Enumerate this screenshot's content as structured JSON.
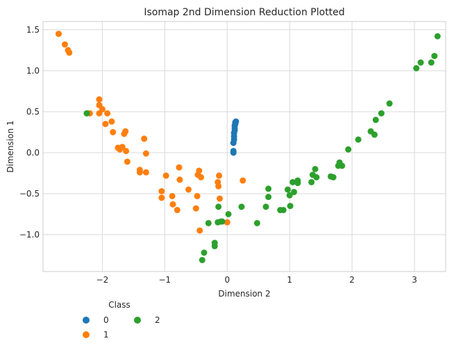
{
  "chart_data": {
    "type": "scatter",
    "title": "Isomap 2nd Dimension Reduction Plotted",
    "xlabel": "Dimension 2",
    "ylabel": "Dimension 1",
    "xlim": [
      -2.95,
      3.5
    ],
    "ylim": [
      -1.45,
      1.6
    ],
    "xticks": [
      -2,
      -1,
      0,
      1,
      2,
      3
    ],
    "yticks": [
      -1.0,
      -0.5,
      0.0,
      0.5,
      1.0,
      1.5
    ],
    "xtick_labels": [
      "−2",
      "−1",
      "0",
      "1",
      "2",
      "3"
    ],
    "ytick_labels": [
      "−1.0",
      "−0.5",
      "0.0",
      "0.5",
      "1.0",
      "1.5"
    ],
    "grid": true,
    "legend": {
      "title": "Class",
      "placement": "below-left",
      "ncol": 2
    },
    "series": [
      {
        "name": "0",
        "color": "#1f77b4",
        "points": [
          [
            0.1,
            0.0
          ],
          [
            0.1,
            0.02
          ],
          [
            0.1,
            0.12
          ],
          [
            0.11,
            0.16
          ],
          [
            0.11,
            0.2
          ],
          [
            0.11,
            0.24
          ],
          [
            0.12,
            0.27
          ],
          [
            0.12,
            0.3
          ],
          [
            0.12,
            0.33
          ],
          [
            0.13,
            0.35
          ],
          [
            0.13,
            0.37
          ],
          [
            0.14,
            0.38
          ]
        ]
      },
      {
        "name": "1",
        "color": "#ff7f0e",
        "points": [
          [
            -2.7,
            1.45
          ],
          [
            -2.6,
            1.32
          ],
          [
            -2.55,
            1.25
          ],
          [
            -2.53,
            1.22
          ],
          [
            -2.2,
            0.48
          ],
          [
            -2.05,
            0.65
          ],
          [
            -2.05,
            0.58
          ],
          [
            -2.05,
            0.48
          ],
          [
            -2.0,
            0.53
          ],
          [
            -1.95,
            0.35
          ],
          [
            -1.92,
            0.48
          ],
          [
            -1.85,
            0.38
          ],
          [
            -1.83,
            0.25
          ],
          [
            -1.75,
            0.06
          ],
          [
            -1.72,
            0.04
          ],
          [
            -1.68,
            0.07
          ],
          [
            -1.65,
            0.23
          ],
          [
            -1.63,
            0.26
          ],
          [
            -1.62,
            0.02
          ],
          [
            -1.6,
            -0.11
          ],
          [
            -1.4,
            -0.21
          ],
          [
            -1.4,
            -0.24
          ],
          [
            -1.33,
            0.17
          ],
          [
            -1.3,
            -0.24
          ],
          [
            -1.3,
            -0.01
          ],
          [
            -1.05,
            -0.47
          ],
          [
            -1.05,
            -0.55
          ],
          [
            -0.98,
            -0.28
          ],
          [
            -0.88,
            -0.53
          ],
          [
            -0.87,
            -0.63
          ],
          [
            -0.8,
            -0.7
          ],
          [
            -0.77,
            -0.18
          ],
          [
            -0.76,
            -0.33
          ],
          [
            -0.62,
            -0.45
          ],
          [
            -0.5,
            -0.68
          ],
          [
            -0.48,
            -0.53
          ],
          [
            -0.47,
            -0.27
          ],
          [
            -0.45,
            -0.22
          ],
          [
            -0.44,
            -0.95
          ],
          [
            -0.42,
            -0.3
          ],
          [
            -0.15,
            -0.36
          ],
          [
            -0.14,
            -0.41
          ],
          [
            -0.13,
            -0.28
          ],
          [
            -0.12,
            -0.56
          ],
          [
            0.0,
            -0.85
          ],
          [
            0.25,
            -0.34
          ]
        ]
      },
      {
        "name": "2",
        "color": "#2ca02c",
        "points": [
          [
            -2.25,
            0.48
          ],
          [
            -0.4,
            -1.31
          ],
          [
            -0.37,
            -1.22
          ],
          [
            -0.3,
            -0.86
          ],
          [
            -0.2,
            -1.1
          ],
          [
            -0.2,
            -1.14
          ],
          [
            -0.15,
            -0.85
          ],
          [
            -0.14,
            -0.66
          ],
          [
            -0.1,
            -0.84
          ],
          [
            -0.08,
            -0.84
          ],
          [
            0.02,
            -0.75
          ],
          [
            0.23,
            -0.66
          ],
          [
            0.48,
            -0.86
          ],
          [
            0.62,
            -0.66
          ],
          [
            0.66,
            -0.54
          ],
          [
            0.66,
            -0.44
          ],
          [
            0.85,
            -0.7
          ],
          [
            0.9,
            -0.7
          ],
          [
            0.97,
            -0.45
          ],
          [
            1.0,
            -0.52
          ],
          [
            1.01,
            -0.65
          ],
          [
            1.05,
            -0.36
          ],
          [
            1.07,
            -0.48
          ],
          [
            1.13,
            -0.37
          ],
          [
            1.13,
            -0.34
          ],
          [
            1.35,
            -0.36
          ],
          [
            1.37,
            -0.27
          ],
          [
            1.41,
            -0.2
          ],
          [
            1.43,
            -0.3
          ],
          [
            1.66,
            -0.29
          ],
          [
            1.7,
            -0.3
          ],
          [
            1.78,
            -0.16
          ],
          [
            1.8,
            -0.12
          ],
          [
            1.84,
            -0.16
          ],
          [
            1.94,
            0.04
          ],
          [
            2.1,
            0.16
          ],
          [
            2.3,
            0.26
          ],
          [
            2.36,
            0.22
          ],
          [
            2.38,
            0.4
          ],
          [
            2.47,
            0.48
          ],
          [
            2.6,
            0.6
          ],
          [
            3.03,
            1.03
          ],
          [
            3.1,
            1.1
          ],
          [
            3.27,
            1.1
          ],
          [
            3.32,
            1.18
          ],
          [
            3.37,
            1.42
          ]
        ]
      }
    ]
  }
}
